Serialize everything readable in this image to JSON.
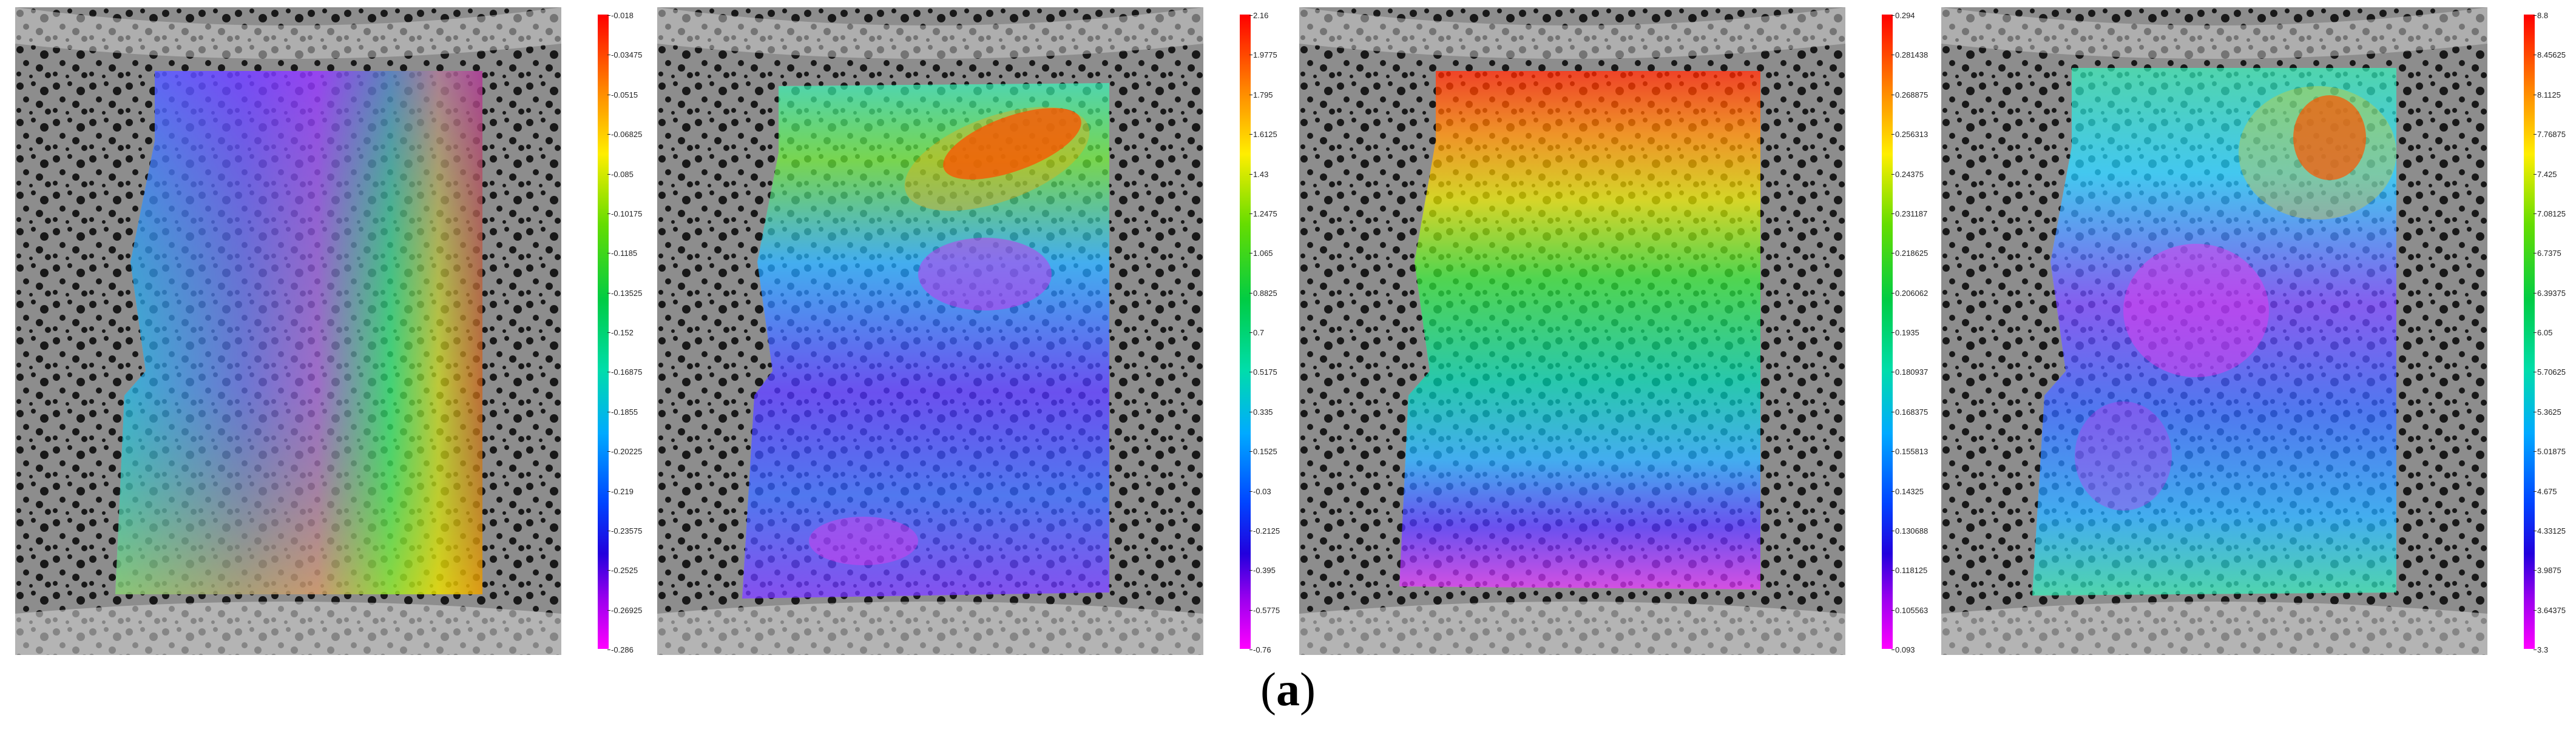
{
  "panels": [
    {
      "id": "p1",
      "colorbar_ticks": [
        "-0.018",
        "-0.03475",
        "-0.0515",
        "-0.06825",
        "-0.085",
        "-0.10175",
        "-0.1185",
        "-0.13525",
        "-0.152",
        "-0.16875",
        "-0.1855",
        "-0.20225",
        "-0.219",
        "-0.23575",
        "-0.2525",
        "-0.26925",
        "-0.286"
      ]
    },
    {
      "id": "p2",
      "colorbar_ticks": [
        "2.16",
        "1.9775",
        "1.795",
        "1.6125",
        "1.43",
        "1.2475",
        "1.065",
        "0.8825",
        "0.7",
        "0.5175",
        "0.335",
        "0.1525",
        "-0.03",
        "-0.2125",
        "-0.395",
        "-0.5775",
        "-0.76"
      ]
    },
    {
      "id": "p3",
      "colorbar_ticks": [
        "0.294",
        "0.281438",
        "0.268875",
        "0.256313",
        "0.24375",
        "0.231187",
        "0.218625",
        "0.206062",
        "0.1935",
        "0.180937",
        "0.168375",
        "0.155813",
        "0.14325",
        "0.130688",
        "0.118125",
        "0.105563",
        "0.093"
      ]
    },
    {
      "id": "p4",
      "colorbar_ticks": [
        "8.8",
        "8.45625",
        "8.1125",
        "7.76875",
        "7.425",
        "7.08125",
        "6.7375",
        "6.39375",
        "6.05",
        "5.70625",
        "5.3625",
        "5.01875",
        "4.675",
        "4.33125",
        "3.9875",
        "3.64375",
        "3.3"
      ]
    }
  ],
  "caption": {
    "open": "(",
    "label": "a",
    "close": ")"
  }
}
